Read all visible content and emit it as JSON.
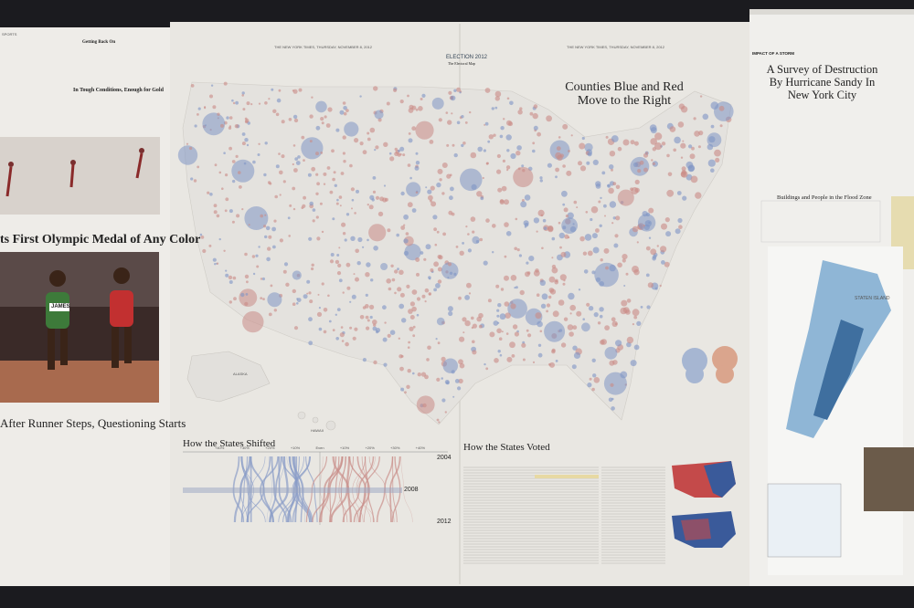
{
  "left_page": {
    "section": "SPORTS",
    "headlines": [
      "Getting Back On",
      "In Tough Conditions, Enough for Gold",
      "ts First Olympic Medal of Any Color",
      "After Runner Steps, Questioning Starts"
    ],
    "bib": "JAMES"
  },
  "center_spread": {
    "dateline_left": "THE NEW YORK TIMES, THURSDAY, NOVEMBER 8, 2012",
    "dateline_right": "THE NEW YORK TIMES, THURSDAY, NOVEMBER 8, 2012",
    "section": "ELECTION 2012",
    "section_sub": "The Electoral Map",
    "map_title": "Counties Blue and Red Move to the Right",
    "inset_labels": [
      "ALASKA",
      "HAWAII"
    ],
    "shift_chart": {
      "title": "How the States Shifted",
      "axis_labels": [
        "+40%",
        "+30%",
        "+20%",
        "+10%",
        "Even",
        "+10%",
        "+20%",
        "+30%",
        "+40%"
      ],
      "years": [
        "2004",
        "2008",
        "2012"
      ]
    },
    "voted": {
      "title": "How the States Voted"
    }
  },
  "right_page": {
    "kicker": "IMPACT OF A STORM",
    "title": "A Survey of Destruction By Hurricane Sandy In New York City",
    "chart_title": "Buildings and People in the Flood Zone",
    "map_label": "STATEN ISLAND"
  }
}
